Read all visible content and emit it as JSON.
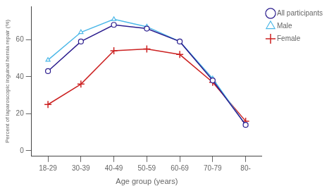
{
  "chart_data": {
    "type": "line",
    "xlabel": "Age group (years)",
    "ylabel": "Percent of laparoscopic inguinal hernia repair (%)",
    "categories": [
      "18-29",
      "30-39",
      "40-49",
      "50-59",
      "60-69",
      "70-79",
      "80-"
    ],
    "series": [
      {
        "name": "All participants",
        "color": "#2b1d8e",
        "marker": "circle",
        "values": [
          43,
          59,
          68,
          66,
          59,
          38,
          14
        ]
      },
      {
        "name": "Male",
        "color": "#4db8e8",
        "marker": "triangle",
        "values": [
          49,
          64,
          71,
          67,
          59,
          39,
          14
        ]
      },
      {
        "name": "Female",
        "color": "#cc2222",
        "marker": "plus",
        "values": [
          25,
          36,
          54,
          55,
          52,
          37,
          16
        ]
      }
    ],
    "ylim": [
      -3,
      78
    ],
    "yticks": [
      0,
      20,
      40,
      60
    ],
    "grid": false,
    "legend": "upper right"
  }
}
